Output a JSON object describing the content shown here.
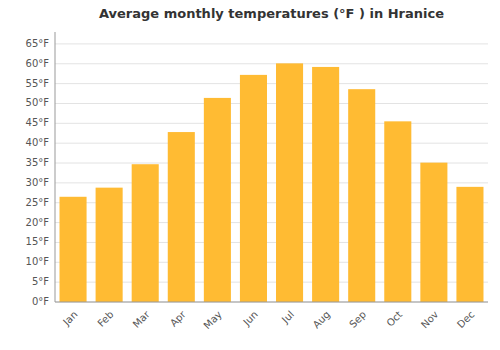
{
  "chart_data": {
    "type": "bar",
    "title": "Average monthly temperatures (°F ) in Hranice",
    "categories": [
      "Jan",
      "Feb",
      "Mar",
      "Apr",
      "May",
      "Jun",
      "Jul",
      "Aug",
      "Sep",
      "Oct",
      "Nov",
      "Dec"
    ],
    "values": [
      26.5,
      28.8,
      34.7,
      42.8,
      51.4,
      57.2,
      60.1,
      59.2,
      53.6,
      45.5,
      35.1,
      29.0
    ],
    "color": "#FFBB33",
    "ylim": [
      0,
      68
    ],
    "yticks": [
      {
        "value": 0,
        "label": "0°F"
      },
      {
        "value": 5,
        "label": "5°F"
      },
      {
        "value": 10,
        "label": "10°F"
      },
      {
        "value": 15,
        "label": "15°F"
      },
      {
        "value": 20,
        "label": "20°F"
      },
      {
        "value": 25,
        "label": "25°F"
      },
      {
        "value": 30,
        "label": "30°F"
      },
      {
        "value": 35,
        "label": "35°F"
      },
      {
        "value": 40,
        "label": "40°F"
      },
      {
        "value": 45,
        "label": "45°F"
      },
      {
        "value": 50,
        "label": "50°F"
      },
      {
        "value": 55,
        "label": "55°F"
      },
      {
        "value": 60,
        "label": "60°F"
      },
      {
        "value": 65,
        "label": "65°F"
      }
    ],
    "grid": true
  }
}
